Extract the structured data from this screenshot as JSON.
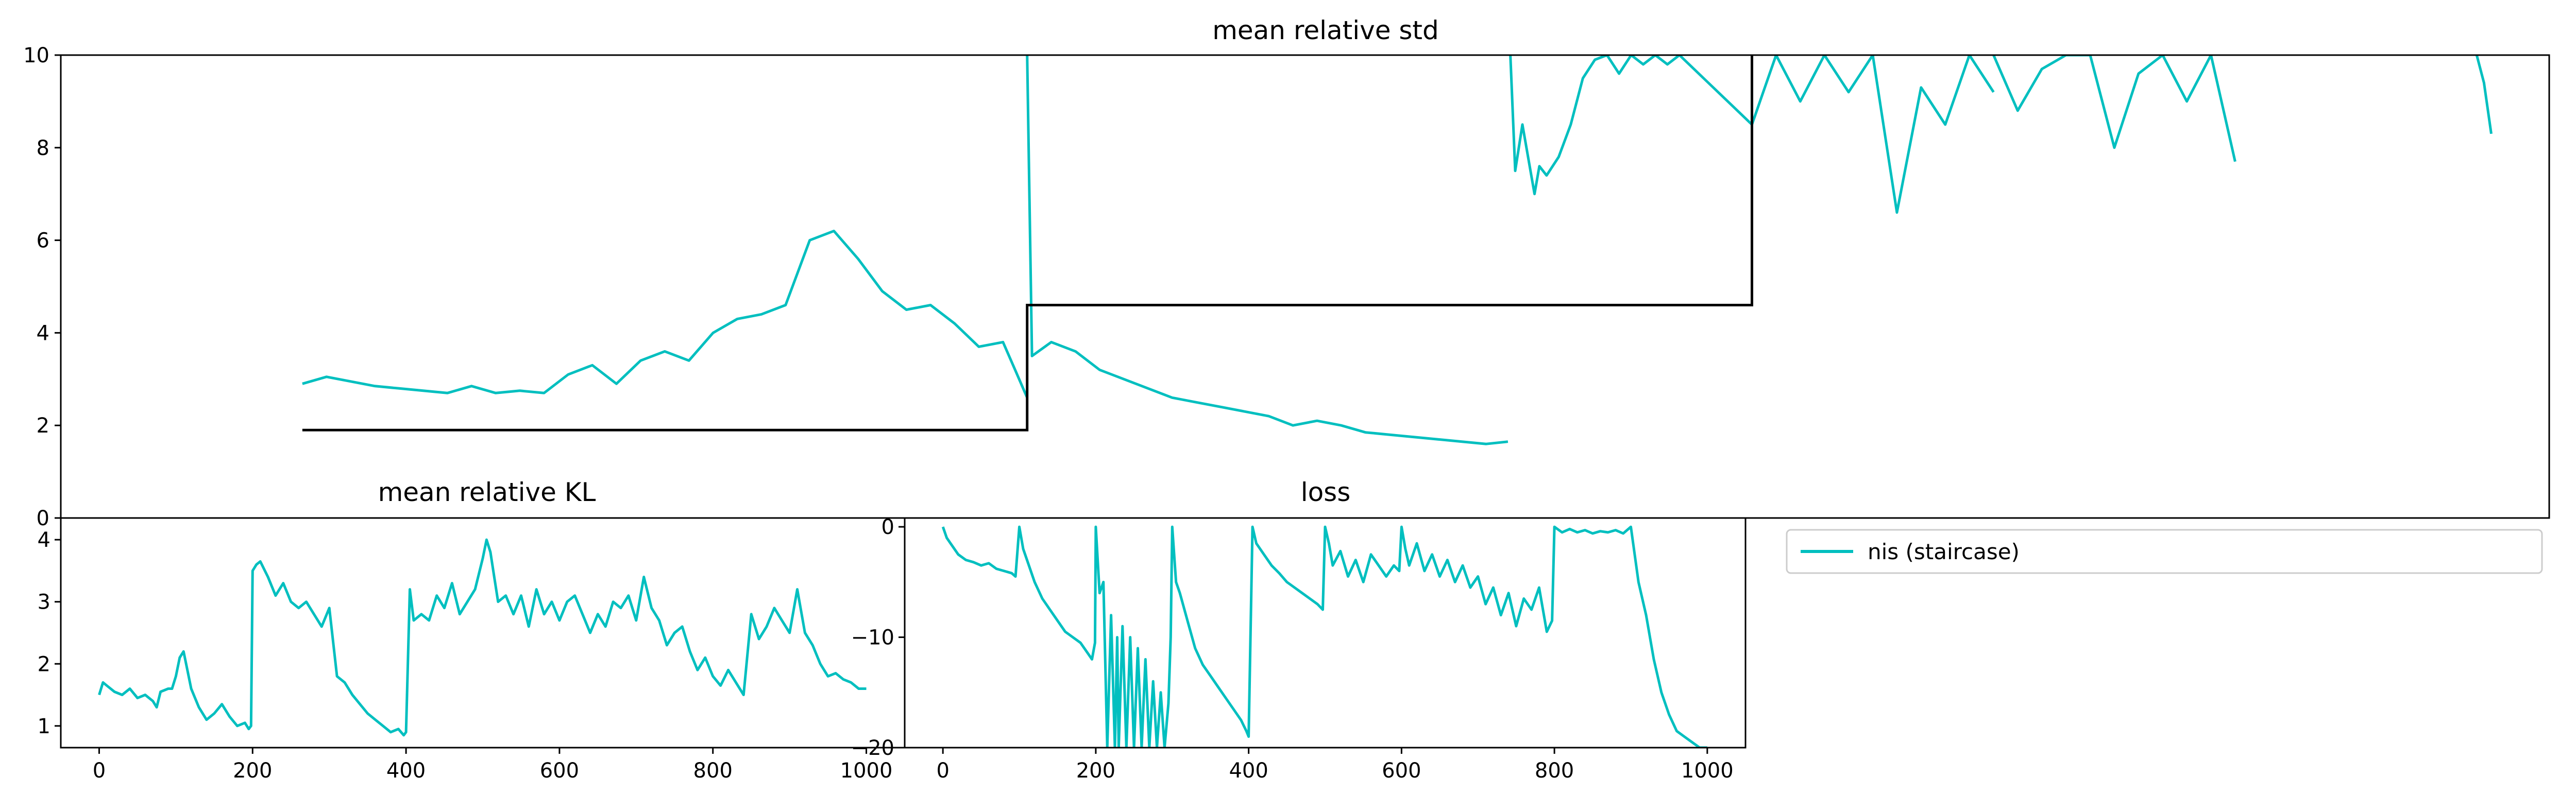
{
  "colors": {
    "series": "#00bfbf",
    "staircase_ref": "#000000",
    "axes": "#000000",
    "background": "#ffffff"
  },
  "chart_data": [
    {
      "id": "top",
      "type": "line",
      "title": "mean relative std",
      "xlabel": "",
      "ylabel": "",
      "xlim": [
        0,
        1030
      ],
      "ylim": [
        0,
        10
      ],
      "yticks": [
        "0",
        "2",
        "4",
        "6",
        "8",
        "10"
      ],
      "xticks_visible": false,
      "grid": false,
      "series": [
        {
          "name": "nis (staircase)",
          "color": "#00bfbf",
          "segments": [
            {
              "x": [
                100,
                110,
                120,
                130,
                140,
                150,
                160,
                170,
                180,
                190,
                200,
                210,
                220,
                230,
                240,
                250,
                260,
                270,
                280,
                290,
                300,
                310,
                320,
                330,
                340,
                350,
                360,
                370,
                380,
                390,
                395,
                400
              ],
              "y": [
                2.9,
                3.05,
                2.95,
                2.85,
                2.8,
                2.75,
                2.7,
                2.85,
                2.7,
                2.75,
                2.7,
                3.1,
                3.3,
                2.9,
                3.4,
                3.6,
                3.4,
                4.0,
                4.3,
                4.4,
                4.6,
                6.0,
                6.2,
                5.6,
                4.9,
                4.5,
                4.6,
                4.2,
                3.7,
                3.8,
                3.2,
                2.6
              ]
            },
            {
              "x": [
                400,
                402,
                410,
                420,
                430,
                440,
                450,
                460,
                470,
                480,
                490,
                500,
                510,
                520,
                530,
                540,
                550,
                560,
                570,
                580,
                590,
                599
              ],
              "y": [
                10,
                3.5,
                3.8,
                3.6,
                3.2,
                3.0,
                2.8,
                2.6,
                2.5,
                2.4,
                2.3,
                2.2,
                2.0,
                2.1,
                2.0,
                1.85,
                1.8,
                1.75,
                1.7,
                1.65,
                1.6,
                1.65
              ]
            },
            {
              "x": [
                600,
                602,
                605,
                610,
                612,
                615,
                620,
                625,
                630,
                635,
                640,
                645,
                650,
                655,
                660,
                665,
                670,
                680,
                690,
                700,
                710,
                720,
                730,
                740,
                750,
                760,
                770,
                780,
                790,
                800
              ],
              "y": [
                10,
                7.5,
                8.5,
                7.0,
                7.6,
                7.4,
                7.8,
                8.5,
                9.5,
                9.9,
                10,
                9.6,
                10,
                9.8,
                10,
                9.8,
                10,
                9.5,
                9.0,
                8.5,
                10,
                9.0,
                10,
                9.2,
                10,
                6.6,
                9.3,
                8.5,
                10,
                9.2
              ]
            },
            {
              "x": [
                800,
                810,
                820,
                830,
                840,
                850,
                860,
                870,
                880,
                890,
                900
              ],
              "y": [
                10,
                8.8,
                9.7,
                10,
                10,
                8.0,
                9.6,
                10,
                9.0,
                10,
                7.7
              ]
            },
            {
              "x": [
                1000,
                1003,
                1006
              ],
              "y": [
                10,
                9.4,
                8.3
              ]
            }
          ]
        },
        {
          "name": "",
          "color": "#000000",
          "x": [
            100,
            400,
            400,
            700,
            700
          ],
          "y": [
            1.9,
            1.9,
            4.6,
            4.6,
            10
          ]
        }
      ]
    },
    {
      "id": "kl",
      "type": "line",
      "title": "mean relative KL",
      "xlabel": "",
      "ylabel": "",
      "xlim": [
        -50,
        1050
      ],
      "ylim": [
        0.65,
        4.35
      ],
      "yticks": [
        "1",
        "2",
        "3",
        "4"
      ],
      "xticks": [
        "0",
        "200",
        "400",
        "600",
        "800",
        "1000"
      ],
      "grid": false,
      "series": [
        {
          "name": "nis (staircase)",
          "color": "#00bfbf",
          "x": [
            0,
            5,
            10,
            20,
            30,
            40,
            50,
            60,
            70,
            75,
            80,
            90,
            95,
            100,
            105,
            110,
            115,
            120,
            130,
            140,
            150,
            160,
            170,
            180,
            190,
            195,
            198,
            200,
            205,
            210,
            220,
            230,
            240,
            250,
            260,
            270,
            280,
            290,
            300,
            310,
            320,
            330,
            340,
            350,
            360,
            370,
            380,
            390,
            397,
            400,
            405,
            410,
            420,
            430,
            440,
            450,
            460,
            470,
            480,
            490,
            500,
            505,
            510,
            515,
            520,
            530,
            540,
            550,
            560,
            570,
            580,
            590,
            600,
            610,
            620,
            630,
            640,
            650,
            660,
            670,
            680,
            690,
            700,
            710,
            720,
            730,
            740,
            750,
            760,
            770,
            780,
            790,
            800,
            810,
            820,
            830,
            840,
            850,
            860,
            870,
            880,
            890,
            900,
            910,
            920,
            930,
            940,
            950,
            960,
            970,
            980,
            990,
            1000
          ],
          "y": [
            1.5,
            1.7,
            1.65,
            1.55,
            1.5,
            1.6,
            1.45,
            1.5,
            1.4,
            1.3,
            1.55,
            1.6,
            1.6,
            1.8,
            2.1,
            2.2,
            1.9,
            1.6,
            1.3,
            1.1,
            1.2,
            1.35,
            1.15,
            1.0,
            1.05,
            0.95,
            1.0,
            3.5,
            3.6,
            3.65,
            3.4,
            3.1,
            3.3,
            3.0,
            2.9,
            3.0,
            2.8,
            2.6,
            2.9,
            1.8,
            1.7,
            1.5,
            1.35,
            1.2,
            1.1,
            1.0,
            0.9,
            0.95,
            0.85,
            0.9,
            3.2,
            2.7,
            2.8,
            2.7,
            3.1,
            2.9,
            3.3,
            2.8,
            3.0,
            3.2,
            3.7,
            4.0,
            3.8,
            3.4,
            3.0,
            3.1,
            2.8,
            3.1,
            2.6,
            3.2,
            2.8,
            3.0,
            2.7,
            3.0,
            3.1,
            2.8,
            2.5,
            2.8,
            2.6,
            3.0,
            2.9,
            3.1,
            2.7,
            3.4,
            2.9,
            2.7,
            2.3,
            2.5,
            2.6,
            2.2,
            1.9,
            2.1,
            1.8,
            1.65,
            1.9,
            1.7,
            1.5,
            2.8,
            2.4,
            2.6,
            2.9,
            2.7,
            2.5,
            3.2,
            2.5,
            2.3,
            2.0,
            1.8,
            1.85,
            1.75,
            1.7,
            1.6,
            1.6
          ]
        }
      ]
    },
    {
      "id": "loss",
      "type": "line",
      "title": "loss",
      "xlabel": "",
      "ylabel": "",
      "xlim": [
        -50,
        1050
      ],
      "ylim": [
        -20,
        0.8
      ],
      "yticks": [
        "0",
        "−10",
        "−20"
      ],
      "xticks": [
        "0",
        "200",
        "400",
        "600",
        "800",
        "1000"
      ],
      "grid": false,
      "series": [
        {
          "name": "nis (staircase)",
          "color": "#00bfbf",
          "x": [
            0,
            5,
            10,
            20,
            30,
            40,
            50,
            60,
            70,
            80,
            90,
            95,
            100,
            105,
            110,
            120,
            130,
            140,
            150,
            160,
            170,
            180,
            190,
            195,
            199,
            200,
            205,
            210,
            215,
            220,
            225,
            228,
            230,
            235,
            240,
            245,
            250,
            255,
            260,
            265,
            270,
            275,
            280,
            285,
            290,
            295,
            298,
            300,
            305,
            310,
            320,
            330,
            340,
            350,
            360,
            370,
            380,
            390,
            397,
            400,
            405,
            410,
            420,
            430,
            440,
            450,
            460,
            470,
            480,
            490,
            497,
            500,
            505,
            510,
            520,
            530,
            540,
            550,
            560,
            570,
            580,
            590,
            597,
            600,
            605,
            610,
            620,
            630,
            640,
            650,
            660,
            670,
            680,
            690,
            700,
            710,
            720,
            730,
            740,
            750,
            760,
            770,
            780,
            790,
            797,
            800,
            810,
            820,
            830,
            840,
            850,
            860,
            870,
            880,
            890,
            900,
            905,
            910,
            920,
            930,
            940,
            950,
            960,
            970,
            980,
            990,
            1000
          ],
          "y": [
            0,
            -1,
            -1.5,
            -2.5,
            -3,
            -3.2,
            -3.5,
            -3.3,
            -3.8,
            -4.0,
            -4.2,
            -4.5,
            0,
            -2,
            -3,
            -5,
            -6.5,
            -7.5,
            -8.5,
            -9.5,
            -10,
            -10.5,
            -11.5,
            -12,
            -10.5,
            0,
            -6,
            -5,
            -20,
            -8,
            -20,
            -10,
            -20,
            -9,
            -20,
            -10,
            -20,
            -11,
            -20,
            -12,
            -20,
            -14,
            -20,
            -15,
            -20,
            -16,
            -10,
            0,
            -5,
            -6,
            -8.5,
            -11,
            -12.5,
            -13.5,
            -14.5,
            -15.5,
            -16.5,
            -17.5,
            -18.5,
            -19,
            0,
            -1.5,
            -2.5,
            -3.5,
            -4.2,
            -5,
            -5.5,
            -6,
            -6.5,
            -7,
            -7.5,
            0,
            -1.5,
            -3.5,
            -2.2,
            -4.5,
            -3,
            -5,
            -2.5,
            -3.5,
            -4.5,
            -3.5,
            -4,
            0,
            -2,
            -3.5,
            -1.5,
            -4,
            -2.5,
            -4.5,
            -3,
            -5,
            -3.5,
            -5.5,
            -4.5,
            -7,
            -5.5,
            -8,
            -6,
            -9,
            -6.5,
            -7.5,
            -5.5,
            -9.5,
            -8.5,
            0,
            -0.5,
            -0.2,
            -0.5,
            -0.3,
            -0.6,
            -0.4,
            -0.5,
            -0.3,
            -0.6,
            0,
            -2.5,
            -5,
            -8,
            -12,
            -15,
            -17,
            -18.5,
            -19,
            -19.5,
            -20,
            -20
          ]
        }
      ]
    }
  ],
  "legend": {
    "placement": "top-left",
    "entries": [
      {
        "label": "nis (staircase)",
        "color": "#00bfbf"
      }
    ]
  }
}
